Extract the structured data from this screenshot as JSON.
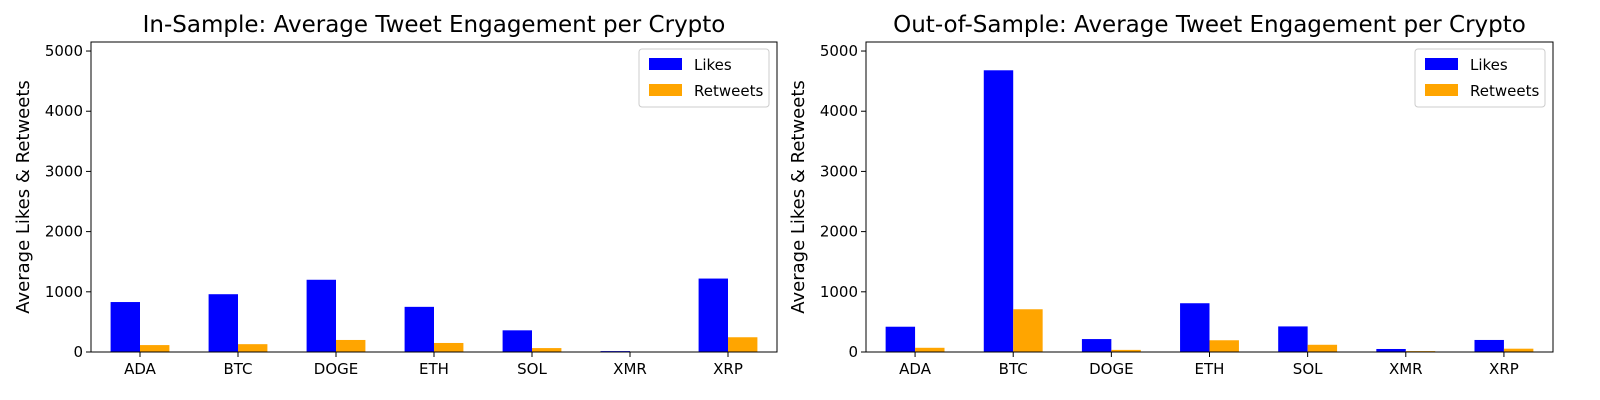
{
  "colors": {
    "likes": "#0000ff",
    "retweets": "#ffa500"
  },
  "chart_data": [
    {
      "type": "bar",
      "title": "In-Sample: Average Tweet Engagement per Crypto",
      "xlabel": "",
      "ylabel": "Average Likes & Retweets",
      "categories": [
        "ADA",
        "BTC",
        "DOGE",
        "ETH",
        "SOL",
        "XMR",
        "XRP"
      ],
      "series": [
        {
          "name": "Likes",
          "color": "#0000ff",
          "values": [
            830,
            960,
            1200,
            750,
            360,
            15,
            1220
          ]
        },
        {
          "name": "Retweets",
          "color": "#ffa500",
          "values": [
            115,
            130,
            200,
            150,
            65,
            5,
            245
          ]
        }
      ],
      "ylim": [
        0,
        5150
      ],
      "yticks": [
        0,
        1000,
        2000,
        3000,
        4000,
        5000
      ],
      "grid": false,
      "legend_position": "top-right"
    },
    {
      "type": "bar",
      "title": "Out-of-Sample: Average Tweet Engagement per Crypto",
      "xlabel": "",
      "ylabel": "Average Likes & Retweets",
      "categories": [
        "ADA",
        "BTC",
        "DOGE",
        "ETH",
        "SOL",
        "XMR",
        "XRP"
      ],
      "series": [
        {
          "name": "Likes",
          "color": "#0000ff",
          "values": [
            420,
            4680,
            215,
            810,
            425,
            50,
            200
          ]
        },
        {
          "name": "Retweets",
          "color": "#ffa500",
          "values": [
            70,
            710,
            35,
            195,
            120,
            15,
            55
          ]
        }
      ],
      "ylim": [
        0,
        5150
      ],
      "yticks": [
        0,
        1000,
        2000,
        3000,
        4000,
        5000
      ],
      "grid": false,
      "legend_position": "top-right"
    }
  ]
}
